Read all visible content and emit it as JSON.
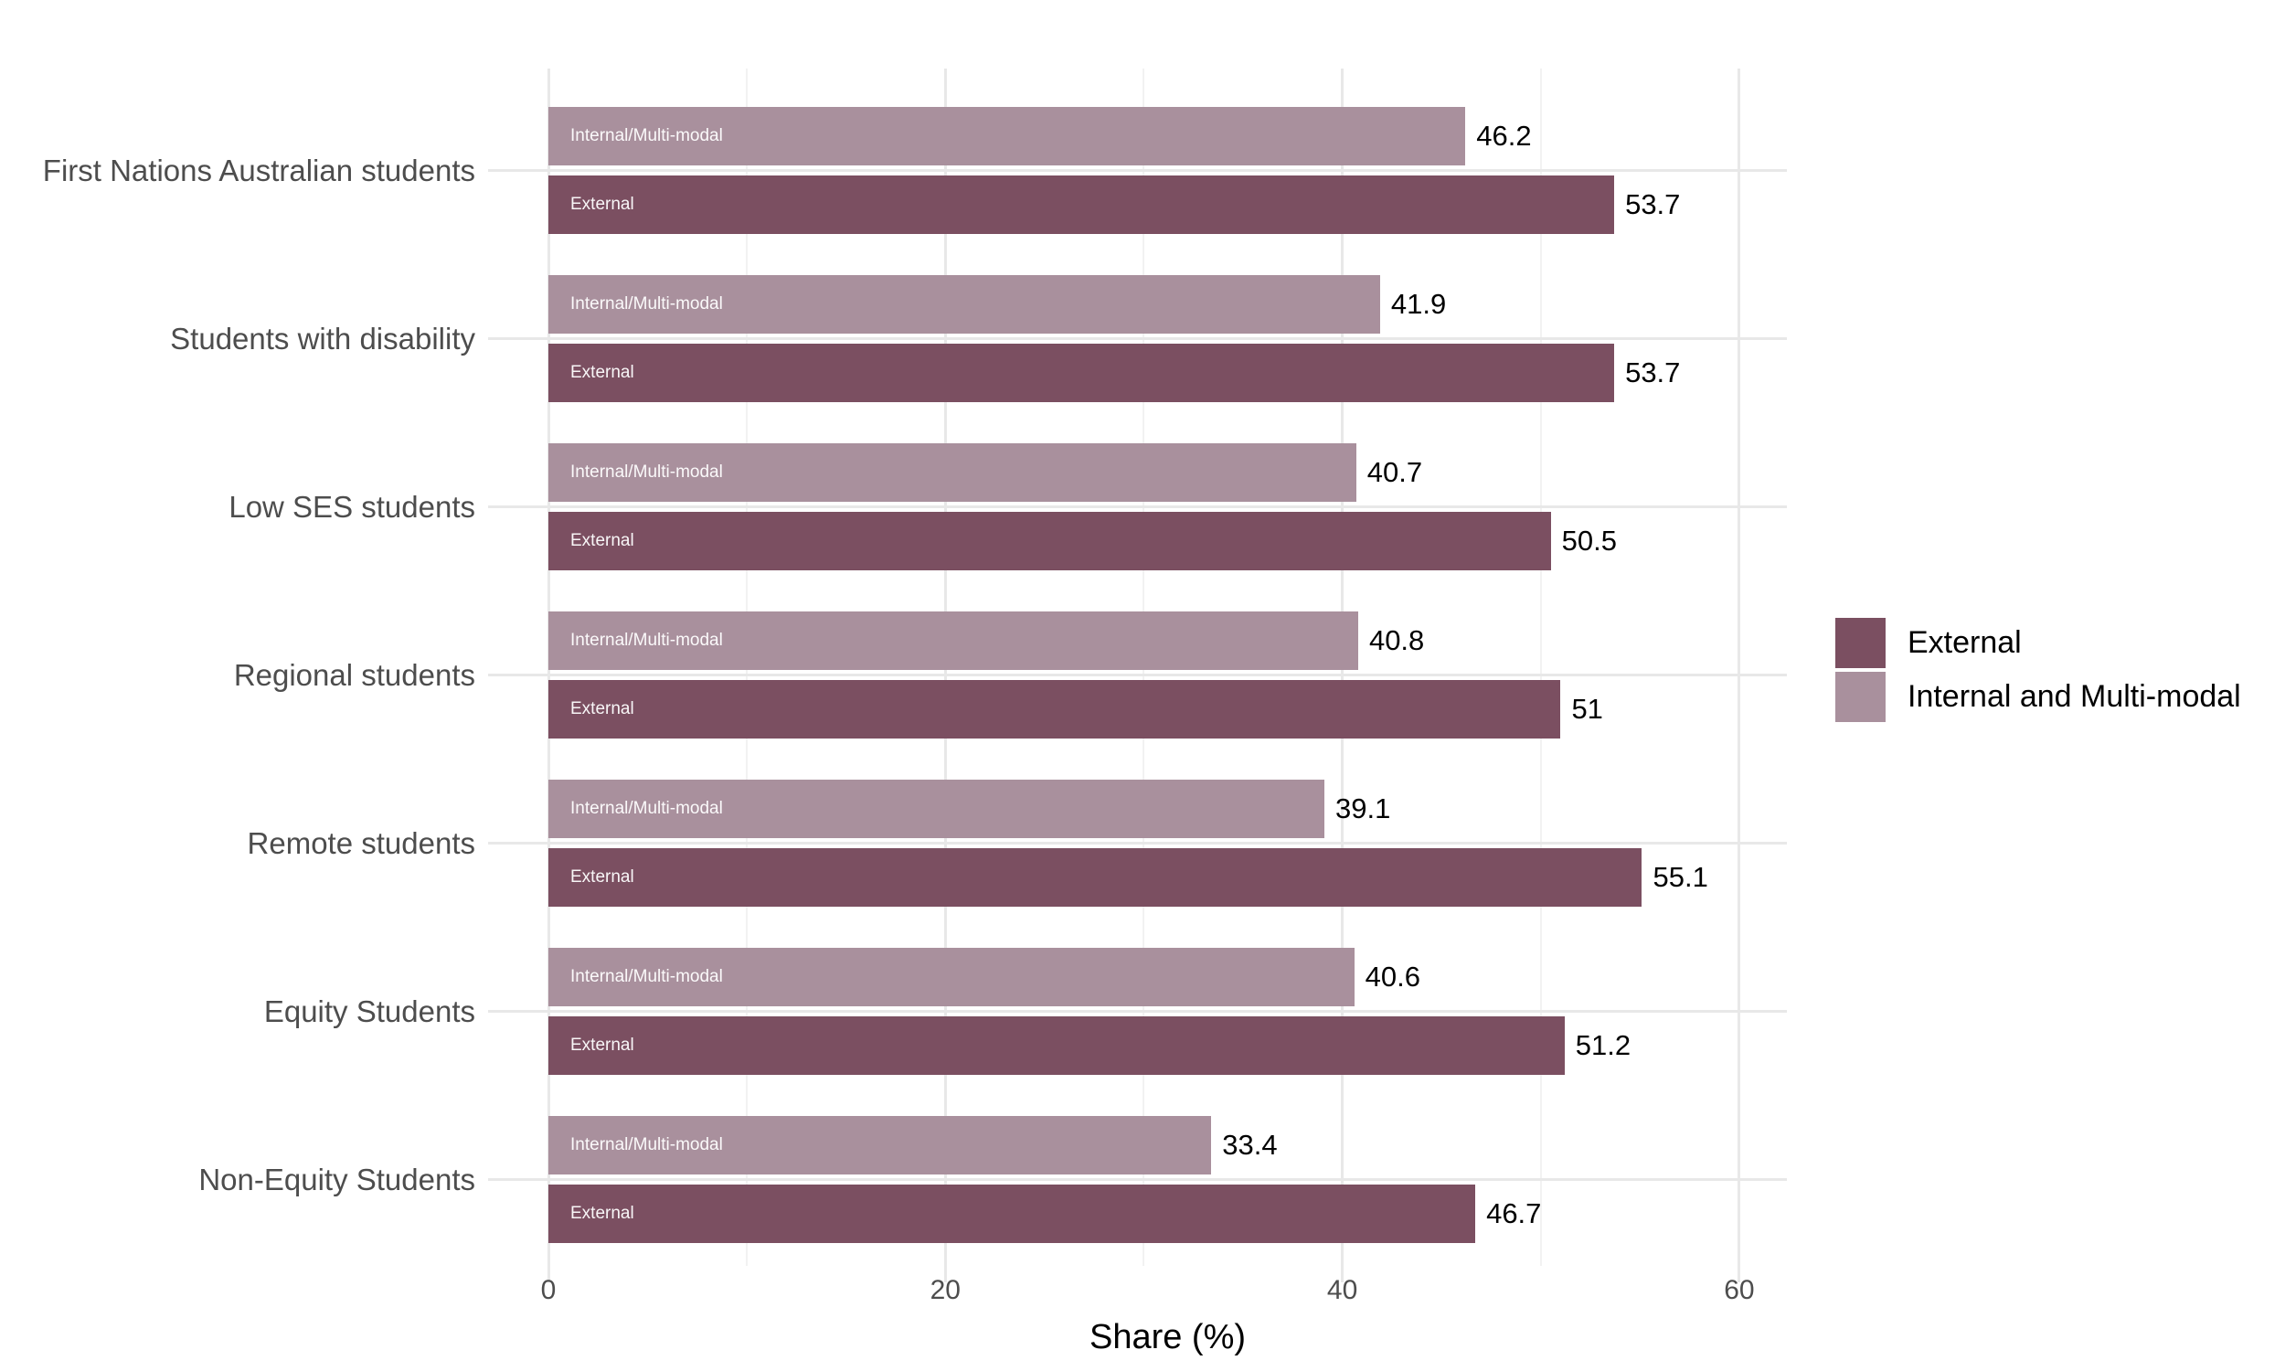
{
  "chart_data": {
    "type": "bar",
    "orientation": "horizontal",
    "title": "",
    "xlabel": "Share (%)",
    "ylabel": "",
    "xlim": [
      0,
      62.4
    ],
    "x_ticks": [
      0,
      20,
      40,
      60
    ],
    "x_tick_labels": [
      "0",
      "20",
      "40",
      "60"
    ],
    "x_minor_ticks": [
      10,
      30,
      50
    ],
    "grid": true,
    "background": "#ffffff",
    "categories": [
      "First Nations Australian students",
      "Students with disability",
      "Low SES students",
      "Regional students",
      "Remote students",
      "Equity Students",
      "Non-Equity Students"
    ],
    "series": [
      {
        "name": "Internal and Multi-modal",
        "bar_label": "Internal/Multi-modal",
        "color": "#a9909d",
        "values": [
          46.2,
          41.9,
          40.7,
          40.8,
          39.1,
          40.6,
          33.4
        ],
        "display_values": [
          "46.2",
          "41.9",
          "40.7",
          "40.8",
          "39.1",
          "40.6",
          "33.4"
        ]
      },
      {
        "name": "External",
        "bar_label": "External",
        "color": "#7b4f61",
        "values": [
          53.7,
          53.7,
          50.5,
          51,
          55.1,
          51.2,
          46.7
        ],
        "display_values": [
          "53.7",
          "53.7",
          "50.5",
          "51",
          "55.1",
          "51.2",
          "46.7"
        ]
      }
    ],
    "legend": {
      "position": "right",
      "entries": [
        {
          "label": "External",
          "color": "#7b4f61"
        },
        {
          "label": "Internal and Multi-modal",
          "color": "#a9909d"
        }
      ]
    },
    "colors": {
      "grid_major": "#e8e8e8",
      "grid_minor": "#f2f2f2",
      "axis_text": "#4d4d4d",
      "value_text": "#000000"
    }
  }
}
